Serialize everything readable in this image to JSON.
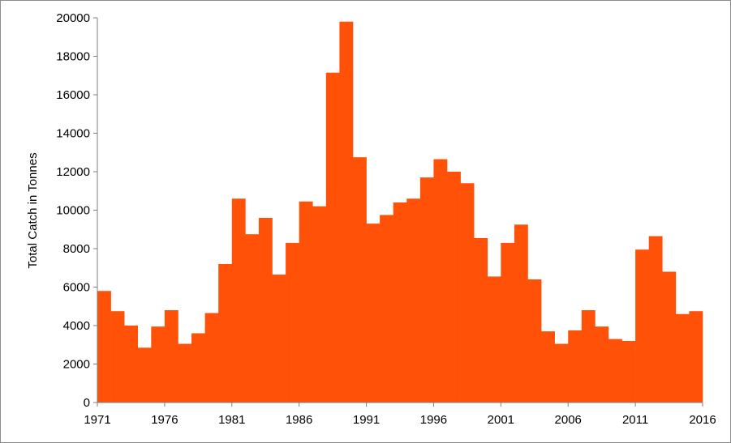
{
  "chart_data": {
    "type": "bar",
    "title": "",
    "xlabel": "",
    "ylabel": "Total Catch in Tonnes",
    "years": [
      1971,
      1972,
      1973,
      1974,
      1975,
      1976,
      1977,
      1978,
      1979,
      1980,
      1981,
      1982,
      1983,
      1984,
      1985,
      1986,
      1987,
      1988,
      1989,
      1990,
      1991,
      1992,
      1993,
      1994,
      1995,
      1996,
      1997,
      1998,
      1999,
      2000,
      2001,
      2002,
      2003,
      2004,
      2005,
      2006,
      2007,
      2008,
      2009,
      2010,
      2011,
      2012,
      2013,
      2014,
      2015
    ],
    "values": [
      5800,
      4750,
      4000,
      2850,
      3950,
      4800,
      3050,
      3600,
      4650,
      7200,
      10600,
      8750,
      9600,
      6650,
      8300,
      10450,
      10200,
      17150,
      19800,
      12750,
      9300,
      9750,
      10400,
      10600,
      11700,
      12650,
      12000,
      11400,
      8550,
      6550,
      8300,
      9250,
      6400,
      3700,
      3050,
      3750,
      4800,
      3950,
      3300,
      3200,
      7950,
      8650,
      6800,
      4600,
      4750
    ],
    "xlim": [
      1971,
      2016
    ],
    "xticks": [
      "1971",
      "1976",
      "1981",
      "1986",
      "1991",
      "1996",
      "2001",
      "2006",
      "2011",
      "2016"
    ],
    "ylim": [
      0,
      20000
    ],
    "yticks": [
      "0",
      "2000",
      "4000",
      "6000",
      "8000",
      "10000",
      "12000",
      "14000",
      "16000",
      "18000",
      "20000"
    ],
    "bar_color": "#ff5108",
    "grid": false,
    "legend": "none"
  }
}
